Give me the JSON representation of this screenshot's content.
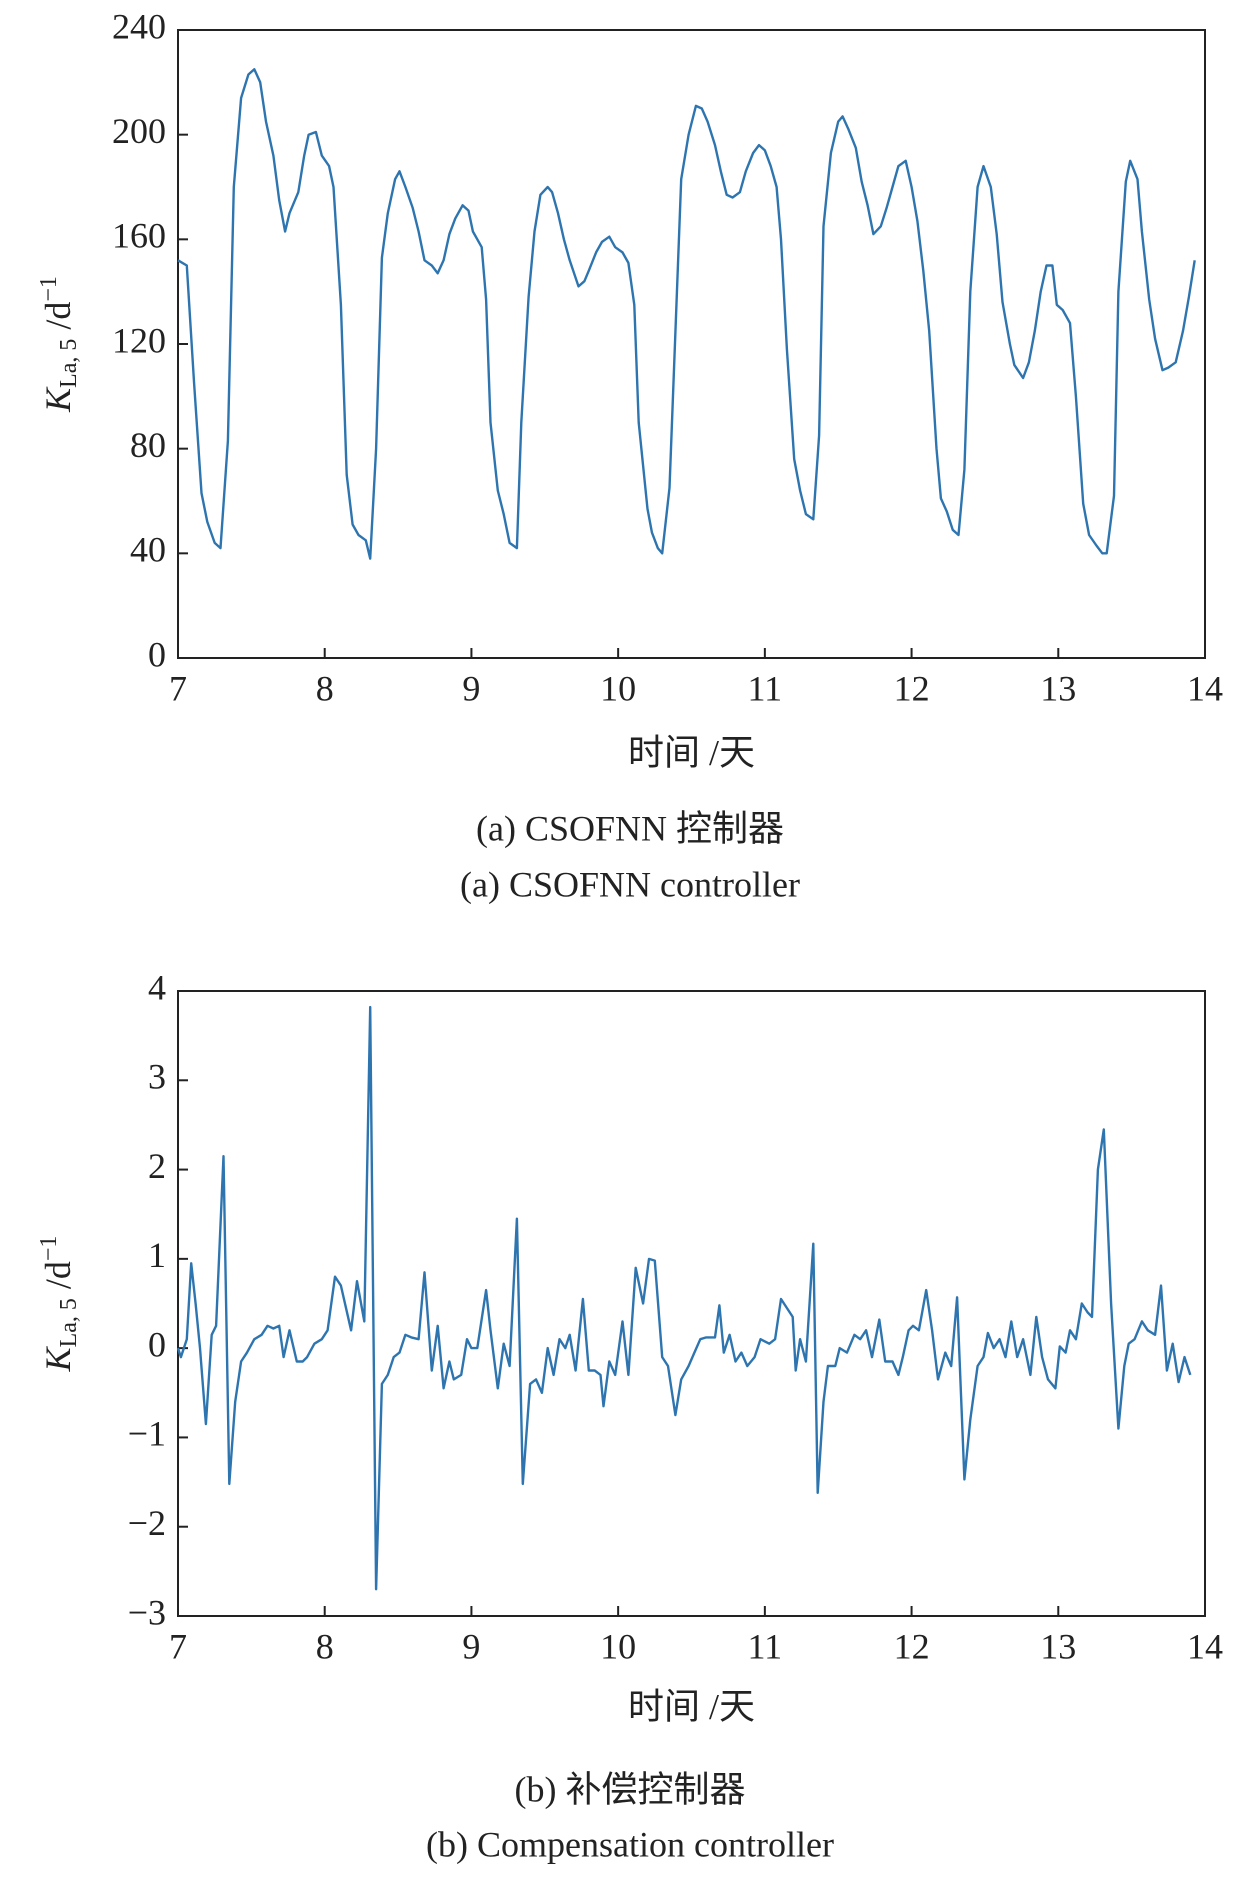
{
  "chart_data": [
    {
      "type": "line",
      "title": "(a) CSOFNN 控制器",
      "subtitle": "(a) CSOFNN controller",
      "x_label": "时间 /天",
      "y_label": {
        "symbol": "K",
        "subscript": "La, 5",
        "unit": " /d",
        "superscript": "−1"
      },
      "xlim": [
        7,
        14
      ],
      "xticks": [
        7,
        8,
        9,
        10,
        11,
        12,
        13,
        14
      ],
      "ylim": [
        0,
        240
      ],
      "yticks": [
        0,
        40,
        80,
        120,
        160,
        200,
        240
      ],
      "grid": false,
      "series": [
        {
          "color": "#2e75b0",
          "x": [
            7.0,
            7.06,
            7.11,
            7.16,
            7.2,
            7.25,
            7.29,
            7.34,
            7.38,
            7.43,
            7.48,
            7.52,
            7.56,
            7.6,
            7.65,
            7.69,
            7.73,
            7.76,
            7.82,
            7.86,
            7.89,
            7.94,
            7.98,
            8.03,
            8.06,
            8.11,
            8.15,
            8.19,
            8.23,
            8.28,
            8.31,
            8.35,
            8.39,
            8.43,
            8.48,
            8.51,
            8.55,
            8.6,
            8.64,
            8.68,
            8.73,
            8.77,
            8.81,
            8.85,
            8.89,
            8.94,
            8.98,
            9.01,
            9.07,
            9.1,
            9.13,
            9.18,
            9.22,
            9.26,
            9.31,
            9.34,
            9.39,
            9.43,
            9.47,
            9.52,
            9.55,
            9.59,
            9.63,
            9.67,
            9.73,
            9.77,
            9.8,
            9.85,
            9.89,
            9.94,
            9.98,
            10.03,
            10.07,
            10.11,
            10.14,
            10.2,
            10.23,
            10.27,
            10.3,
            10.35,
            10.43,
            10.48,
            10.53,
            10.57,
            10.61,
            10.66,
            10.7,
            10.74,
            10.78,
            10.83,
            10.87,
            10.92,
            10.96,
            11.0,
            11.04,
            11.08,
            11.11,
            11.15,
            11.2,
            11.24,
            11.28,
            11.33,
            11.37,
            11.4,
            11.45,
            11.5,
            11.53,
            11.57,
            11.62,
            11.66,
            11.7,
            11.74,
            11.79,
            11.83,
            11.87,
            11.91,
            11.96,
            12.0,
            12.04,
            12.08,
            12.12,
            12.17,
            12.2,
            12.24,
            12.28,
            12.32,
            12.36,
            12.4,
            12.45,
            12.49,
            12.54,
            12.58,
            12.62,
            12.67,
            12.7,
            12.76,
            12.8,
            12.84,
            12.88,
            12.92,
            12.96,
            12.99,
            13.03,
            13.08,
            13.12,
            13.17,
            13.21,
            13.26,
            13.3,
            13.33,
            13.38,
            13.41,
            13.46,
            13.49,
            13.54,
            13.57,
            13.62,
            13.66,
            13.71,
            13.75,
            13.8,
            13.85,
            13.89,
            13.93
          ],
          "values": [
            152,
            150,
            105,
            63,
            52,
            44,
            42,
            83,
            180,
            214,
            223,
            225,
            220,
            205,
            192,
            175,
            163,
            170,
            178,
            192,
            200,
            201,
            192,
            188,
            180,
            135,
            70,
            51,
            47,
            45,
            38,
            80,
            153,
            170,
            183,
            186,
            180,
            172,
            163,
            152,
            150,
            147,
            152,
            162,
            168,
            173,
            171,
            163,
            157,
            137,
            90,
            64,
            55,
            44,
            42,
            90,
            138,
            163,
            177,
            180,
            178,
            170,
            160,
            152,
            142,
            144,
            148,
            155,
            159,
            161,
            157,
            155,
            151,
            135,
            90,
            57,
            48,
            42,
            40,
            65,
            183,
            200,
            211,
            210,
            205,
            196,
            186,
            177,
            176,
            178,
            186,
            193,
            196,
            194,
            188,
            180,
            160,
            118,
            76,
            64,
            55,
            53,
            85,
            165,
            193,
            205,
            207,
            202,
            195,
            182,
            173,
            162,
            165,
            172,
            180,
            188,
            190,
            180,
            167,
            148,
            125,
            80,
            61,
            56,
            49,
            47,
            72,
            140,
            180,
            188,
            180,
            162,
            136,
            120,
            112,
            107,
            113,
            125,
            140,
            150,
            150,
            135,
            133,
            128,
            100,
            59,
            47,
            43,
            40,
            40,
            62,
            140,
            182,
            190,
            183,
            163,
            137,
            122,
            110,
            111,
            113,
            125,
            138,
            152
          ]
        }
      ]
    },
    {
      "type": "line",
      "title": "(b) 补偿控制器",
      "subtitle": "(b) Compensation controller",
      "x_label": "时间 /天",
      "y_label": {
        "symbol": "K",
        "subscript": "La, 5",
        "unit": " /d",
        "superscript": "−1"
      },
      "xlim": [
        7,
        14
      ],
      "xticks": [
        7,
        8,
        9,
        10,
        11,
        12,
        13,
        14
      ],
      "ylim": [
        -3,
        4
      ],
      "yticks": [
        {
          "value": -3,
          "label": "−3"
        },
        {
          "value": -2,
          "label": "−2"
        },
        {
          "value": -1,
          "label": "−1"
        },
        0,
        1,
        2,
        3,
        4
      ],
      "grid": false,
      "series": [
        {
          "color": "#2e75b0",
          "x": [
            7.0,
            7.02,
            7.06,
            7.09,
            7.12,
            7.15,
            7.19,
            7.23,
            7.26,
            7.31,
            7.35,
            7.39,
            7.43,
            7.47,
            7.52,
            7.57,
            7.61,
            7.65,
            7.69,
            7.72,
            7.76,
            7.81,
            7.85,
            7.88,
            7.93,
            7.98,
            8.02,
            8.07,
            8.11,
            8.18,
            8.22,
            8.27,
            8.31,
            8.35,
            8.39,
            8.43,
            8.47,
            8.51,
            8.55,
            8.59,
            8.64,
            8.68,
            8.73,
            8.77,
            8.81,
            8.85,
            8.88,
            8.93,
            8.97,
            9.0,
            9.04,
            9.1,
            9.13,
            9.18,
            9.22,
            9.26,
            9.31,
            9.35,
            9.4,
            9.44,
            9.48,
            9.52,
            9.56,
            9.6,
            9.64,
            9.67,
            9.71,
            9.76,
            9.8,
            9.84,
            9.88,
            9.9,
            9.94,
            9.98,
            10.03,
            10.07,
            10.12,
            10.17,
            10.21,
            10.25,
            10.3,
            10.34,
            10.39,
            10.43,
            10.48,
            10.52,
            10.56,
            10.6,
            10.66,
            10.69,
            10.72,
            10.76,
            10.8,
            10.84,
            10.88,
            10.93,
            10.97,
            11.03,
            11.07,
            11.11,
            11.15,
            11.19,
            11.21,
            11.24,
            11.28,
            11.33,
            11.36,
            11.4,
            11.43,
            11.48,
            11.51,
            11.56,
            11.61,
            11.65,
            11.69,
            11.73,
            11.78,
            11.82,
            11.87,
            11.91,
            11.94,
            11.98,
            12.01,
            12.05,
            12.1,
            12.14,
            12.18,
            12.23,
            12.27,
            12.31,
            12.36,
            12.4,
            12.45,
            12.49,
            12.52,
            12.56,
            12.6,
            12.64,
            12.68,
            12.72,
            12.76,
            12.81,
            12.85,
            12.89,
            12.93,
            12.98,
            13.01,
            13.05,
            13.08,
            13.12,
            13.16,
            13.2,
            13.23,
            13.27,
            13.31,
            13.36,
            13.41,
            13.45,
            13.48,
            13.52,
            13.57,
            13.61,
            13.66,
            13.7,
            13.74,
            13.78,
            13.82,
            13.86,
            13.9
          ],
          "values": [
            0,
            -0.1,
            0.1,
            0.95,
            0.5,
            0,
            -0.85,
            0.15,
            0.25,
            2.15,
            -1.52,
            -0.6,
            -0.15,
            -0.05,
            0.1,
            0.15,
            0.25,
            0.22,
            0.25,
            -0.1,
            0.2,
            -0.15,
            -0.15,
            -0.1,
            0.05,
            0.1,
            0.2,
            0.8,
            0.7,
            0.2,
            0.75,
            0.3,
            3.82,
            -2.7,
            -0.4,
            -0.3,
            -0.1,
            -0.05,
            0.15,
            0.12,
            0.1,
            0.85,
            -0.25,
            0.25,
            -0.45,
            -0.15,
            -0.35,
            -0.3,
            0.1,
            0,
            0,
            0.65,
            0.2,
            -0.45,
            0.05,
            -0.2,
            1.45,
            -1.52,
            -0.4,
            -0.35,
            -0.5,
            0,
            -0.3,
            0.1,
            0,
            0.15,
            -0.25,
            0.55,
            -0.25,
            -0.25,
            -0.3,
            -0.65,
            -0.15,
            -0.3,
            0.3,
            -0.3,
            0.9,
            0.5,
            1,
            0.98,
            -0.1,
            -0.2,
            -0.75,
            -0.35,
            -0.2,
            -0.05,
            0.1,
            0.12,
            0.12,
            0.48,
            -0.05,
            0.15,
            -0.15,
            -0.05,
            -0.2,
            -0.1,
            0.1,
            0.05,
            0.1,
            0.55,
            0.45,
            0.35,
            -0.25,
            0.1,
            -0.15,
            1.17,
            -1.62,
            -0.6,
            -0.2,
            -0.2,
            0,
            -0.05,
            0.15,
            0.1,
            0.2,
            -0.1,
            0.32,
            -0.15,
            -0.15,
            -0.3,
            -0.1,
            0.2,
            0.25,
            0.2,
            0.65,
            0.2,
            -0.35,
            -0.05,
            -0.2,
            0.57,
            -1.47,
            -0.8,
            -0.2,
            -0.1,
            0.17,
            0,
            0.1,
            -0.1,
            0.3,
            -0.1,
            0.1,
            -0.3,
            0.35,
            -0.1,
            -0.35,
            -0.45,
            0.02,
            -0.05,
            0.2,
            0.1,
            0.5,
            0.4,
            0.35,
            2,
            2.45,
            0.5,
            -0.9,
            -0.2,
            0.05,
            0.1,
            0.3,
            0.2,
            0.15,
            0.7,
            -0.25,
            0.05,
            -0.38,
            -0.1,
            -0.3
          ]
        }
      ]
    }
  ]
}
